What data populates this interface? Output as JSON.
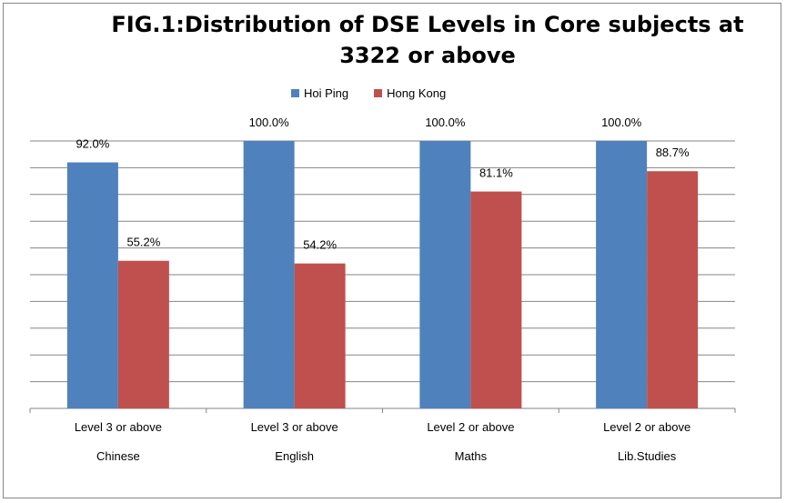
{
  "chart_data": {
    "type": "bar",
    "title": "FIG.1:Distribution of DSE Levels in Core subjects at 3322 or above",
    "categories": [
      "Chinese",
      "English",
      "Maths",
      "Lib.Studies"
    ],
    "sublabels": [
      "Level 3 or above",
      "Level 3 or above",
      "Level 2 or above",
      "Level 2 or above"
    ],
    "series": [
      {
        "name": "Hoi Ping",
        "color": "#4F81BD",
        "values": [
          92.0,
          100.0,
          100.0,
          100.0
        ],
        "labels": [
          "92.0%",
          "100.0%",
          "100.0%",
          "100.0%"
        ]
      },
      {
        "name": "Hong Kong",
        "color": "#C0504D",
        "values": [
          55.2,
          54.2,
          81.1,
          88.7
        ],
        "labels": [
          "55.2%",
          "54.2%",
          "81.1%",
          "88.7%"
        ]
      }
    ],
    "ylim": [
      0,
      100
    ],
    "grid": true,
    "legend_position": "top"
  }
}
